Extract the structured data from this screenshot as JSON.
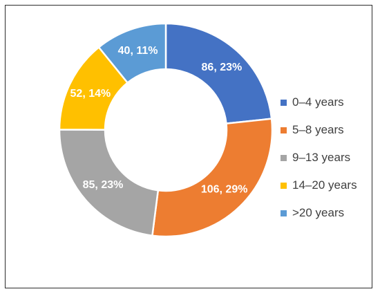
{
  "chart_data": {
    "type": "pie",
    "variant": "donut",
    "title": "",
    "categories": [
      "0–4 years",
      "5–8 years",
      "9–13 years",
      "14–20 years",
      ">20 years"
    ],
    "values": [
      86,
      106,
      85,
      52,
      40
    ],
    "percentages": [
      23,
      29,
      23,
      14,
      11
    ],
    "data_labels": [
      "86, 23%",
      "106, 29%",
      "85, 23%",
      "52, 14%",
      "40, 11%"
    ],
    "colors": [
      "#4472C4",
      "#ED7D31",
      "#A5A5A5",
      "#FFC000",
      "#5B9BD5"
    ],
    "legend_position": "right",
    "start_angle": "12 o'clock, clockwise"
  }
}
